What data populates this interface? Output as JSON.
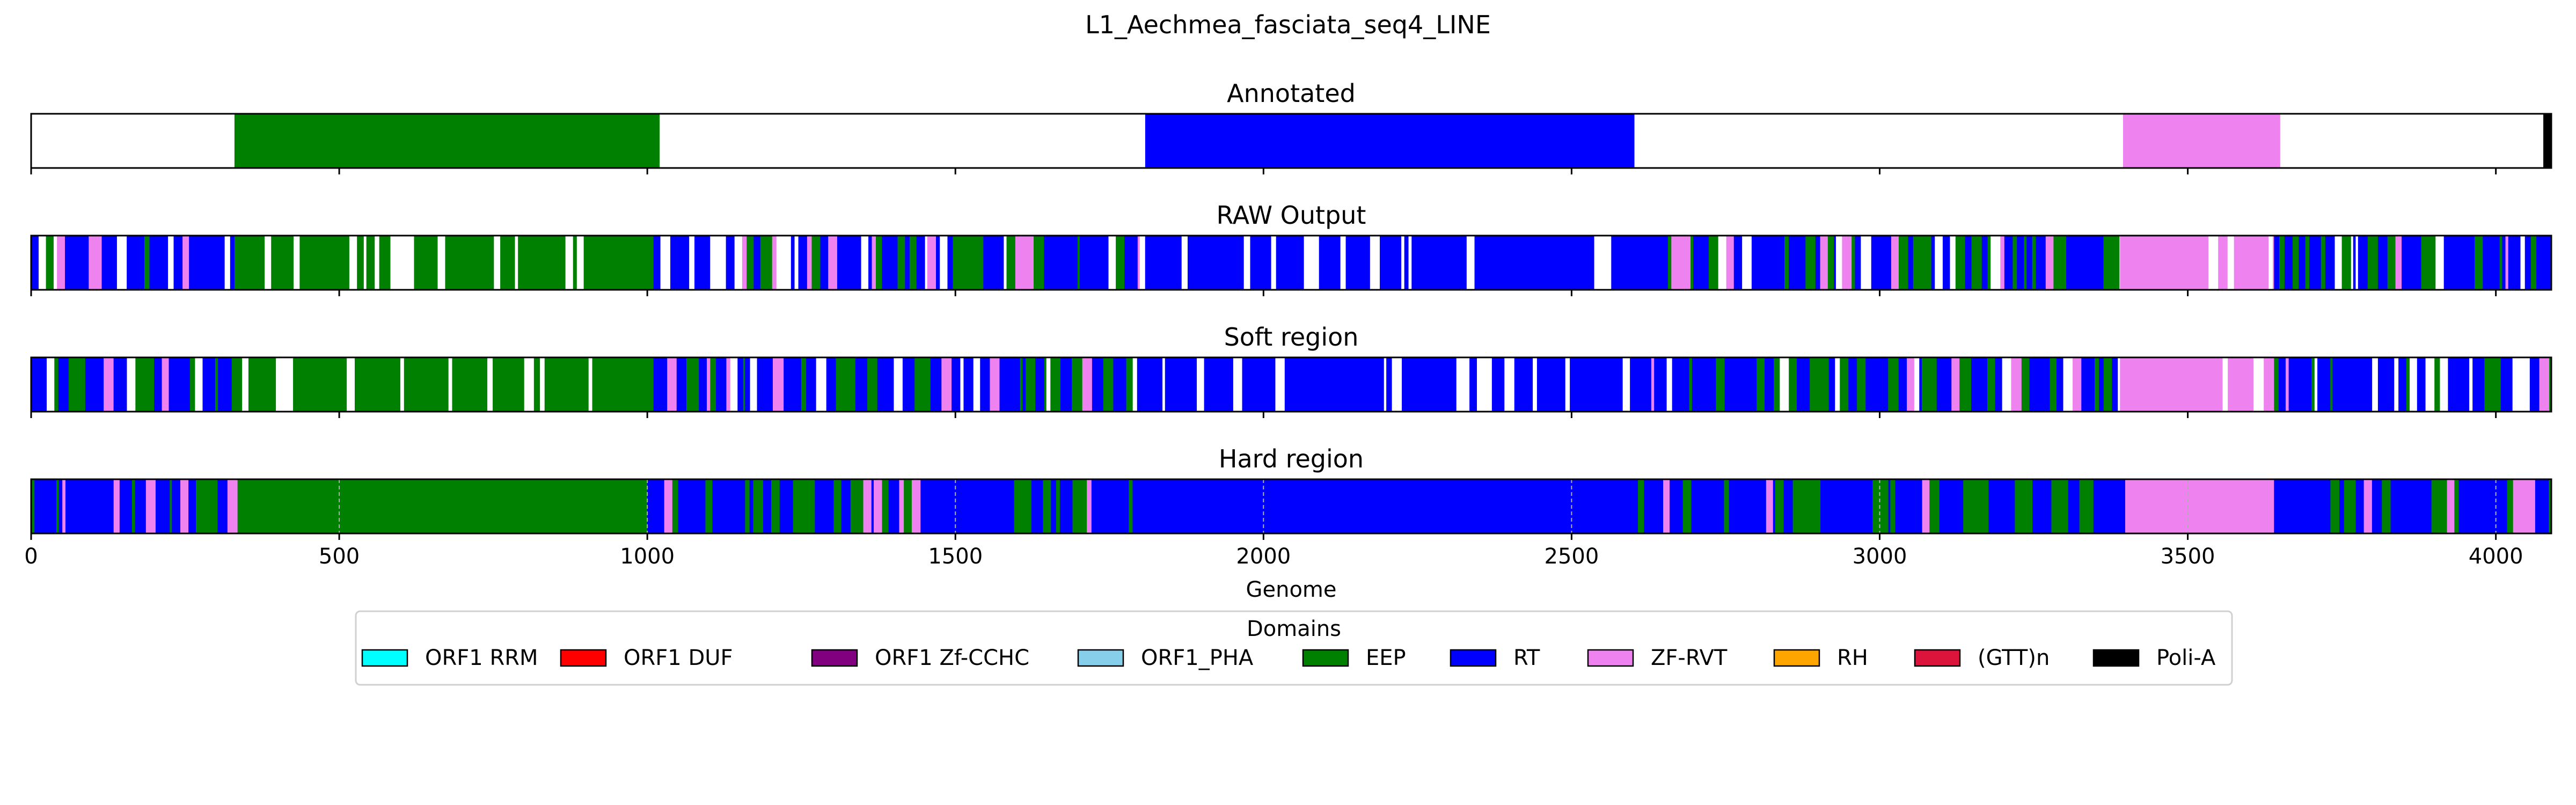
{
  "chart_data": {
    "type": "bar",
    "title": "L1_Aechmea_fasciata_seq4_LINE",
    "xlabel": "Genome",
    "xlim": [
      0,
      4090
    ],
    "xticks": [
      0,
      500,
      1000,
      1500,
      2000,
      2500,
      3000,
      3500,
      4000
    ],
    "panels": [
      {
        "title": "Annotated",
        "segments": [
          {
            "start": 330,
            "end": 1020,
            "domain": "EEP"
          },
          {
            "start": 1808,
            "end": 2602,
            "domain": "RT"
          },
          {
            "start": 3395,
            "end": 3650,
            "domain": "ZF-RVT"
          },
          {
            "start": 4077,
            "end": 4090,
            "domain": "Poli-A"
          }
        ]
      },
      {
        "title": "RAW Output",
        "mode": "mixed",
        "regions": [
          {
            "start": 0,
            "end": 330,
            "mix": [
              "RT",
              "EEP",
              "ZF-RVT",
              "none"
            ]
          },
          {
            "start": 330,
            "end": 1010,
            "mix": [
              "EEP",
              "none"
            ]
          },
          {
            "start": 1010,
            "end": 1808,
            "mix": [
              "RT",
              "EEP",
              "ZF-RVT",
              "none"
            ]
          },
          {
            "start": 1808,
            "end": 2600,
            "mix": [
              "RT",
              "none"
            ]
          },
          {
            "start": 2600,
            "end": 3390,
            "mix": [
              "RT",
              "EEP",
              "ZF-RVT",
              "none"
            ]
          },
          {
            "start": 3390,
            "end": 3640,
            "mix": [
              "ZF-RVT",
              "none"
            ]
          },
          {
            "start": 3640,
            "end": 4090,
            "mix": [
              "RT",
              "EEP",
              "ZF-RVT",
              "none"
            ]
          }
        ]
      },
      {
        "title": "Soft region",
        "mode": "mixed",
        "regions": [
          {
            "start": 0,
            "end": 330,
            "mix": [
              "RT",
              "EEP",
              "ZF-RVT",
              "none"
            ]
          },
          {
            "start": 330,
            "end": 1010,
            "mix": [
              "EEP",
              "none"
            ]
          },
          {
            "start": 1010,
            "end": 1808,
            "mix": [
              "RT",
              "EEP",
              "ZF-RVT",
              "none"
            ]
          },
          {
            "start": 1808,
            "end": 2600,
            "mix": [
              "RT",
              "none"
            ]
          },
          {
            "start": 2600,
            "end": 3390,
            "mix": [
              "RT",
              "EEP",
              "ZF-RVT",
              "none"
            ]
          },
          {
            "start": 3390,
            "end": 3640,
            "mix": [
              "ZF-RVT",
              "none"
            ]
          },
          {
            "start": 3640,
            "end": 4090,
            "mix": [
              "RT",
              "EEP",
              "ZF-RVT",
              "none"
            ]
          }
        ]
      },
      {
        "title": "Hard region",
        "mode": "mixed",
        "grid": true,
        "regions": [
          {
            "start": 0,
            "end": 335,
            "mix": [
              "RT",
              "EEP",
              "ZF-RVT"
            ]
          },
          {
            "start": 335,
            "end": 1000,
            "mix": [
              "EEP"
            ]
          },
          {
            "start": 1000,
            "end": 1800,
            "mix": [
              "RT",
              "EEP",
              "ZF-RVT"
            ]
          },
          {
            "start": 1800,
            "end": 2600,
            "mix": [
              "RT"
            ]
          },
          {
            "start": 2600,
            "end": 3400,
            "mix": [
              "RT",
              "EEP",
              "ZF-RVT"
            ]
          },
          {
            "start": 3400,
            "end": 3640,
            "mix": [
              "ZF-RVT"
            ]
          },
          {
            "start": 3640,
            "end": 4090,
            "mix": [
              "RT",
              "EEP",
              "ZF-RVT"
            ]
          }
        ]
      }
    ],
    "legend": {
      "title": "Domains",
      "placement": "bottom-center",
      "entries": [
        {
          "label": "ORF1 RRM",
          "color": "#00ffff"
        },
        {
          "label": "ORF1 DUF",
          "color": "#ff0000"
        },
        {
          "label": "ORF1 Zf-CCHC",
          "color": "#800080"
        },
        {
          "label": "ORF1_PHA",
          "color": "#87ceeb"
        },
        {
          "label": "EEP",
          "color": "#008000"
        },
        {
          "label": "RT",
          "color": "#0000ff"
        },
        {
          "label": "ZF-RVT",
          "color": "#ee82ee"
        },
        {
          "label": "RH",
          "color": "#ffa500"
        },
        {
          "label": "(GTT)n",
          "color": "#dc143c"
        },
        {
          "label": "Poli-A",
          "color": "#000000"
        }
      ]
    },
    "colors": {
      "EEP": "#008000",
      "RT": "#0000ff",
      "ZF-RVT": "#ee82ee",
      "Poli-A": "#000000",
      "none": "#ffffff"
    }
  }
}
